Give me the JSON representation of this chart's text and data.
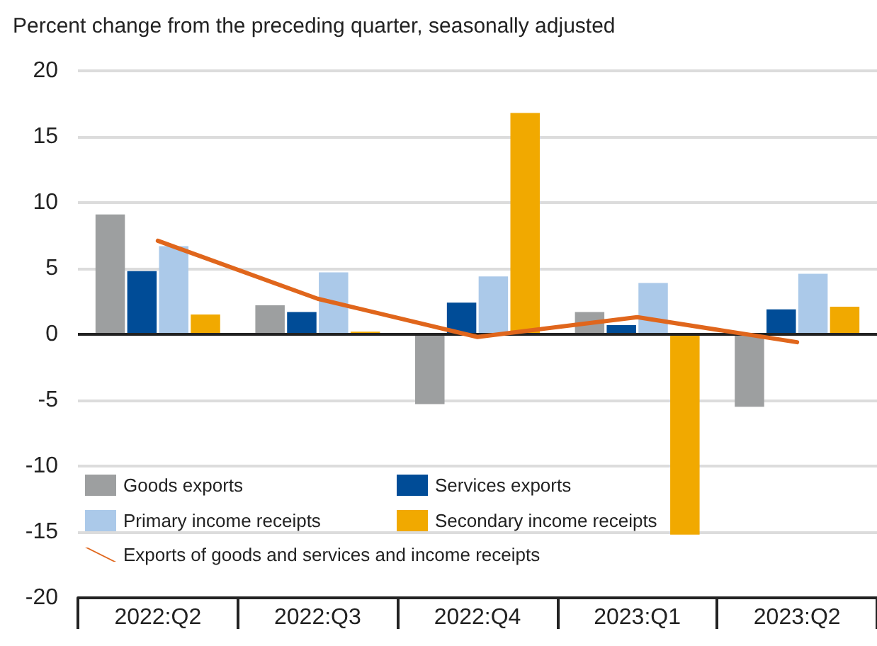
{
  "chart_data": {
    "type": "bar",
    "title": "Percent change from the preceding quarter, seasonally adjusted",
    "categories": [
      "2022:Q2",
      "2022:Q3",
      "2022:Q4",
      "2023:Q1",
      "2023:Q2"
    ],
    "series": [
      {
        "name": "Goods exports",
        "color": "#9d9fa0",
        "values": [
          9.1,
          2.2,
          -5.3,
          1.7,
          -5.5
        ]
      },
      {
        "name": "Services exports",
        "color": "#004c97",
        "values": [
          4.8,
          1.7,
          2.4,
          0.7,
          1.9
        ]
      },
      {
        "name": "Primary income receipts",
        "color": "#abc9e9",
        "values": [
          6.7,
          4.7,
          4.4,
          3.9,
          4.6
        ]
      },
      {
        "name": "Secondary income receipts",
        "color": "#f1a900",
        "values": [
          1.5,
          0.2,
          16.8,
          -15.2,
          2.1
        ]
      },
      {
        "name": "Exports of goods and services and income receipts",
        "type": "line",
        "color": "#e0661c",
        "values": [
          7.1,
          2.7,
          -0.2,
          1.3,
          -0.6
        ]
      }
    ],
    "ylim": [
      -20,
      20
    ],
    "yticks": [
      -20,
      -15,
      -10,
      -5,
      0,
      5,
      10,
      15,
      20
    ],
    "grid": "y",
    "legend": "bottom left",
    "marker": "none"
  }
}
